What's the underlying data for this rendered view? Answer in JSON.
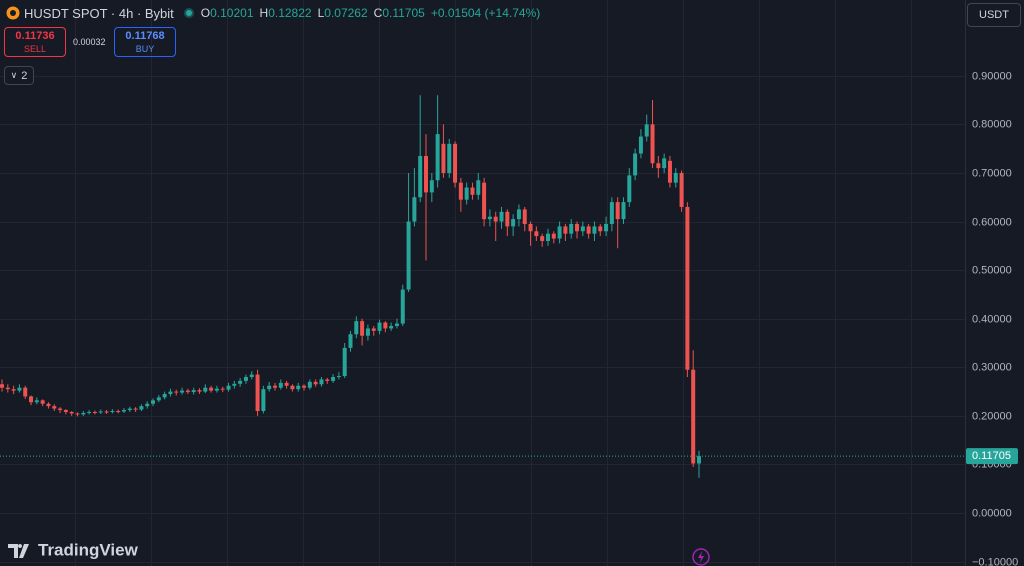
{
  "header": {
    "symbol": "HUSDT SPOT · 4h · Bybit",
    "o_label": "O",
    "o": "0.10201",
    "h_label": "H",
    "h": "0.12822",
    "l_label": "L",
    "l": "0.07262",
    "c_label": "C",
    "c": "0.11705",
    "change": "+0.01504 (+14.74%)",
    "sell_price": "0.11736",
    "sell": "SELL",
    "spread": "0.00032",
    "buy_price": "0.11768",
    "buy": "BUY",
    "indicators": "2",
    "currency": "USDT",
    "brand": "TradingView"
  },
  "chart_data": {
    "type": "candlestick",
    "up_color": "#26a69a",
    "down_color": "#ef5350",
    "grid": true,
    "ylim": [
      -0.109,
      1.056
    ],
    "yticks": [
      {
        "value": -0.1,
        "label": "−0.10000"
      },
      {
        "value": 0,
        "label": "0.00000"
      },
      {
        "value": 0.1,
        "label": "0.10000"
      },
      {
        "value": 0.2,
        "label": "0.20000"
      },
      {
        "value": 0.3,
        "label": "0.30000"
      },
      {
        "value": 0.4,
        "label": "0.40000"
      },
      {
        "value": 0.5,
        "label": "0.50000"
      },
      {
        "value": 0.6,
        "label": "0.60000"
      },
      {
        "value": 0.7,
        "label": "0.70000"
      },
      {
        "value": 0.8,
        "label": "0.80000"
      },
      {
        "value": 0.9,
        "label": "0.90000"
      }
    ],
    "last_price_label": "0.11705",
    "open": [
      0.265,
      0.258,
      0.255,
      0.252,
      0.258,
      0.24,
      0.228,
      0.232,
      0.225,
      0.22,
      0.215,
      0.212,
      0.208,
      0.205,
      0.203,
      0.206,
      0.208,
      0.207,
      0.209,
      0.208,
      0.21,
      0.209,
      0.212,
      0.215,
      0.213,
      0.22,
      0.225,
      0.232,
      0.238,
      0.245,
      0.25,
      0.248,
      0.252,
      0.249,
      0.253,
      0.25,
      0.258,
      0.252,
      0.256,
      0.254,
      0.262,
      0.266,
      0.272,
      0.28,
      0.285,
      0.21,
      0.255,
      0.262,
      0.258,
      0.268,
      0.262,
      0.255,
      0.262,
      0.258,
      0.27,
      0.265,
      0.275,
      0.272,
      0.28,
      0.282,
      0.34,
      0.368,
      0.395,
      0.365,
      0.38,
      0.375,
      0.392,
      0.38,
      0.385,
      0.39,
      0.46,
      0.6,
      0.65,
      0.735,
      0.66,
      0.685,
      0.76,
      0.7,
      0.76,
      0.68,
      0.645,
      0.67,
      0.655,
      0.68,
      0.605,
      0.61,
      0.6,
      0.62,
      0.59,
      0.605,
      0.625,
      0.595,
      0.58,
      0.57,
      0.56,
      0.575,
      0.565,
      0.59,
      0.575,
      0.595,
      0.58,
      0.59,
      0.575,
      0.59,
      0.58,
      0.595,
      0.64,
      0.605,
      0.64,
      0.695,
      0.74,
      0.775,
      0.8,
      0.72,
      0.71,
      0.725,
      0.68,
      0.7,
      0.63,
      0.295,
      0.10201
    ],
    "high": [
      0.275,
      0.265,
      0.262,
      0.265,
      0.262,
      0.242,
      0.238,
      0.234,
      0.228,
      0.224,
      0.218,
      0.214,
      0.21,
      0.207,
      0.21,
      0.212,
      0.211,
      0.213,
      0.212,
      0.214,
      0.213,
      0.216,
      0.219,
      0.218,
      0.224,
      0.23,
      0.236,
      0.243,
      0.25,
      0.256,
      0.254,
      0.258,
      0.256,
      0.258,
      0.257,
      0.265,
      0.262,
      0.262,
      0.26,
      0.268,
      0.272,
      0.278,
      0.285,
      0.292,
      0.295,
      0.262,
      0.27,
      0.268,
      0.275,
      0.272,
      0.265,
      0.268,
      0.265,
      0.275,
      0.275,
      0.28,
      0.278,
      0.286,
      0.29,
      0.35,
      0.375,
      0.405,
      0.4,
      0.388,
      0.385,
      0.398,
      0.395,
      0.392,
      0.4,
      0.47,
      0.7,
      0.71,
      0.86,
      0.78,
      0.7,
      0.86,
      0.8,
      0.77,
      0.765,
      0.69,
      0.68,
      0.68,
      0.7,
      0.69,
      0.625,
      0.62,
      0.63,
      0.625,
      0.615,
      0.635,
      0.63,
      0.6,
      0.59,
      0.575,
      0.585,
      0.58,
      0.6,
      0.595,
      0.605,
      0.6,
      0.6,
      0.595,
      0.6,
      0.595,
      0.61,
      0.65,
      0.65,
      0.65,
      0.71,
      0.75,
      0.79,
      0.82,
      0.85,
      0.735,
      0.74,
      0.735,
      0.71,
      0.705,
      0.64,
      0.335,
      0.12822
    ],
    "low": [
      0.25,
      0.248,
      0.245,
      0.248,
      0.235,
      0.222,
      0.224,
      0.22,
      0.215,
      0.21,
      0.206,
      0.203,
      0.2,
      0.199,
      0.2,
      0.203,
      0.203,
      0.204,
      0.204,
      0.205,
      0.205,
      0.206,
      0.208,
      0.208,
      0.21,
      0.215,
      0.22,
      0.228,
      0.234,
      0.24,
      0.242,
      0.244,
      0.245,
      0.244,
      0.245,
      0.247,
      0.248,
      0.248,
      0.249,
      0.25,
      0.256,
      0.26,
      0.266,
      0.275,
      0.2,
      0.205,
      0.25,
      0.252,
      0.254,
      0.256,
      0.25,
      0.25,
      0.252,
      0.254,
      0.26,
      0.26,
      0.266,
      0.268,
      0.275,
      0.278,
      0.332,
      0.36,
      0.345,
      0.355,
      0.365,
      0.368,
      0.372,
      0.375,
      0.38,
      0.385,
      0.455,
      0.59,
      0.64,
      0.52,
      0.64,
      0.67,
      0.69,
      0.69,
      0.67,
      0.62,
      0.635,
      0.645,
      0.645,
      0.59,
      0.59,
      0.56,
      0.585,
      0.57,
      0.57,
      0.59,
      0.58,
      0.55,
      0.56,
      0.548,
      0.55,
      0.555,
      0.555,
      0.56,
      0.565,
      0.565,
      0.57,
      0.565,
      0.56,
      0.57,
      0.57,
      0.58,
      0.545,
      0.595,
      0.63,
      0.685,
      0.73,
      0.765,
      0.71,
      0.69,
      0.7,
      0.67,
      0.67,
      0.62,
      0.28,
      0.095,
      0.07262
    ],
    "close": [
      0.258,
      0.255,
      0.252,
      0.258,
      0.24,
      0.228,
      0.232,
      0.225,
      0.22,
      0.215,
      0.212,
      0.208,
      0.205,
      0.203,
      0.206,
      0.208,
      0.207,
      0.209,
      0.208,
      0.21,
      0.209,
      0.212,
      0.215,
      0.213,
      0.22,
      0.225,
      0.232,
      0.238,
      0.245,
      0.25,
      0.248,
      0.252,
      0.249,
      0.253,
      0.25,
      0.258,
      0.252,
      0.256,
      0.254,
      0.262,
      0.266,
      0.272,
      0.28,
      0.285,
      0.21,
      0.255,
      0.262,
      0.258,
      0.268,
      0.262,
      0.255,
      0.262,
      0.258,
      0.27,
      0.265,
      0.275,
      0.272,
      0.28,
      0.282,
      0.34,
      0.368,
      0.395,
      0.365,
      0.38,
      0.375,
      0.392,
      0.38,
      0.385,
      0.39,
      0.46,
      0.6,
      0.65,
      0.735,
      0.66,
      0.685,
      0.78,
      0.7,
      0.76,
      0.68,
      0.645,
      0.67,
      0.655,
      0.685,
      0.605,
      0.61,
      0.6,
      0.62,
      0.59,
      0.605,
      0.625,
      0.595,
      0.58,
      0.57,
      0.56,
      0.575,
      0.565,
      0.59,
      0.575,
      0.595,
      0.58,
      0.59,
      0.575,
      0.59,
      0.58,
      0.595,
      0.64,
      0.605,
      0.64,
      0.695,
      0.74,
      0.775,
      0.8,
      0.72,
      0.71,
      0.73,
      0.68,
      0.7,
      0.63,
      0.295,
      0.102,
      0.11705
    ]
  }
}
